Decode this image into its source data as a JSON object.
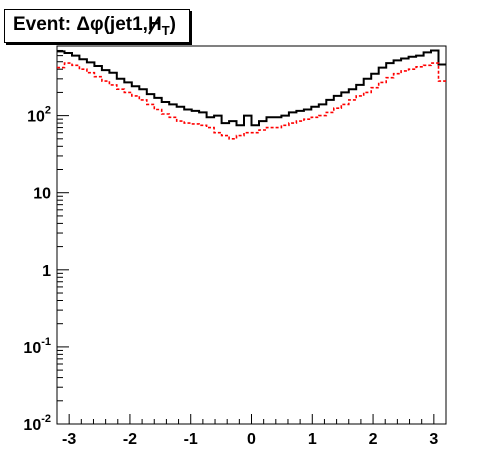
{
  "title": {
    "prefix": "Event: ",
    "delta_phi": "Δφ(jet1,",
    "met": "H",
    "subscript": "T",
    "close": ")"
  },
  "chart_data": {
    "type": "line",
    "title": "Event: Δφ(jet1,H̸T)",
    "xlabel": "",
    "ylabel": "",
    "xlim": [
      -3.2,
      3.2
    ],
    "ylim": [
      0.01,
      800
    ],
    "yscale": "log",
    "xticks": [
      "-3",
      "-2",
      "-1",
      "0",
      "1",
      "2",
      "3"
    ],
    "yticks": [
      {
        "value": 0.01,
        "base": "10",
        "exp": "-2"
      },
      {
        "value": 0.1,
        "base": "10",
        "exp": "-1"
      },
      {
        "value": 1,
        "base": "1",
        "exp": ""
      },
      {
        "value": 10,
        "base": "10",
        "exp": ""
      },
      {
        "value": 100,
        "base": "10",
        "exp": "2"
      }
    ],
    "grid": false,
    "series": [
      {
        "style": "solid-step",
        "color": "#000000",
        "values": [
          680,
          650,
          600,
          540,
          490,
          440,
          390,
          360,
          300,
          270,
          240,
          220,
          190,
          170,
          150,
          140,
          130,
          120,
          115,
          110,
          95,
          100,
          80,
          85,
          75,
          100,
          75,
          85,
          95,
          95,
          100,
          110,
          115,
          120,
          130,
          140,
          160,
          180,
          200,
          220,
          250,
          300,
          350,
          420,
          480,
          520,
          550,
          580,
          600,
          660,
          700,
          460
        ]
      },
      {
        "style": "dashed-step",
        "color": "#ff0000",
        "values": [
          420,
          480,
          450,
          400,
          360,
          320,
          280,
          250,
          220,
          200,
          180,
          160,
          140,
          120,
          105,
          95,
          85,
          80,
          78,
          75,
          70,
          60,
          55,
          50,
          55,
          60,
          60,
          65,
          70,
          70,
          75,
          80,
          85,
          90,
          95,
          100,
          110,
          125,
          140,
          160,
          180,
          200,
          230,
          270,
          310,
          350,
          380,
          400,
          430,
          450,
          480,
          280
        ]
      }
    ]
  }
}
